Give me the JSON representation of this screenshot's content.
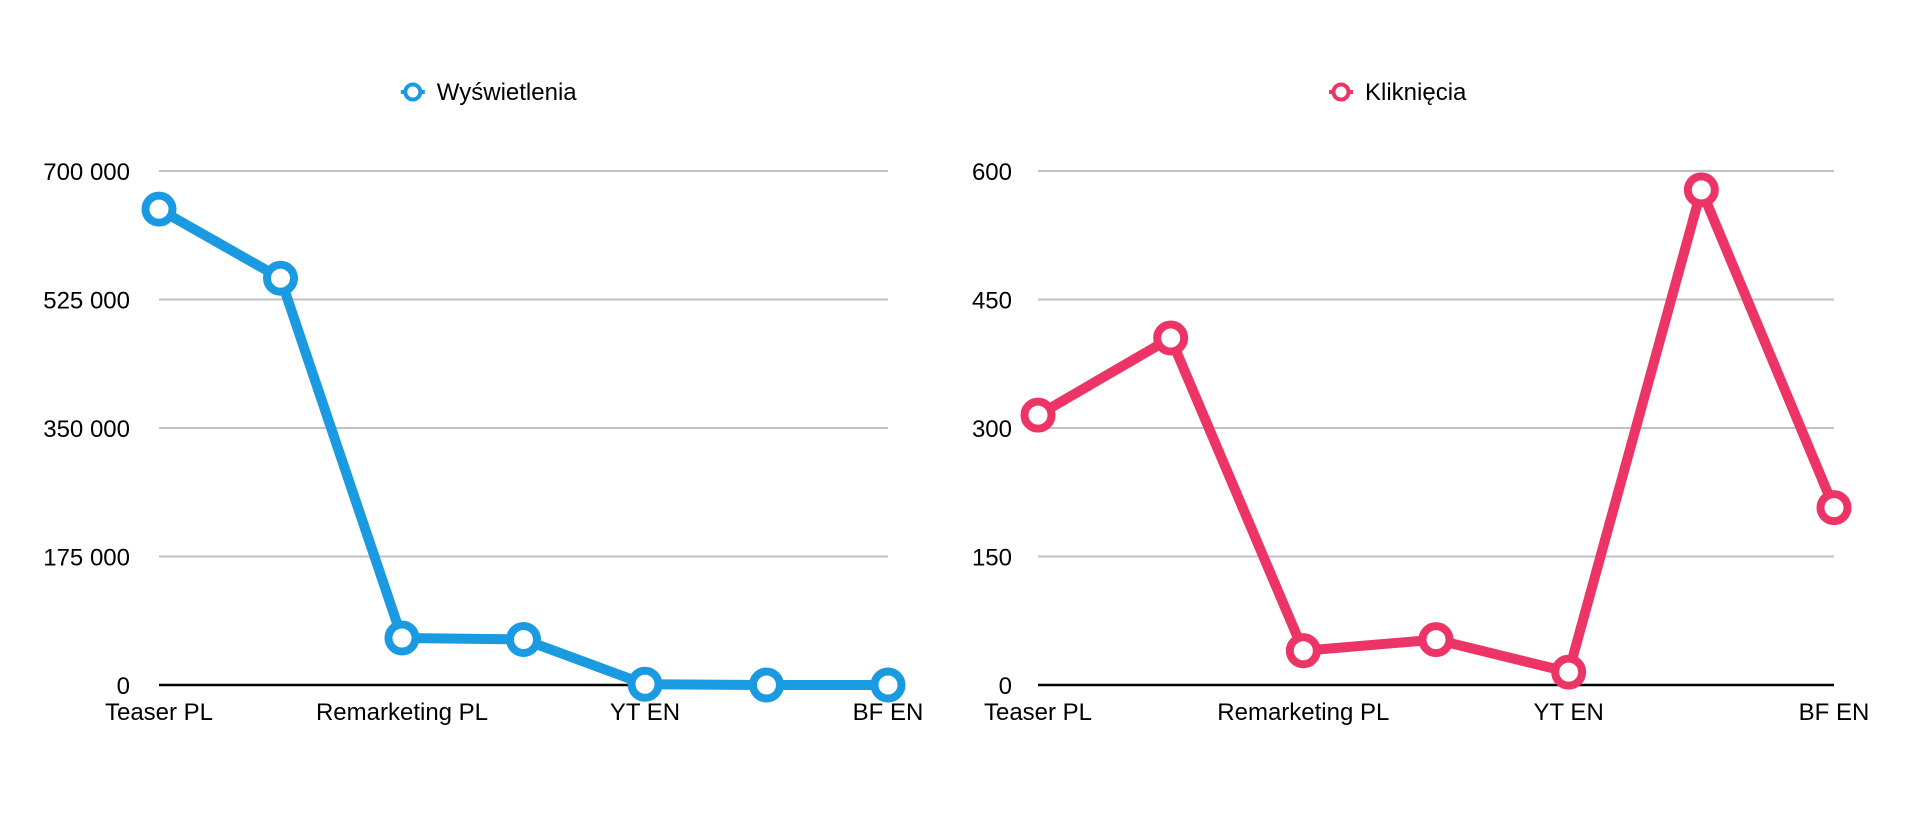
{
  "chart_data": [
    {
      "type": "line",
      "title": "",
      "xlabel": "",
      "ylabel": "",
      "legend": "Wyświetlenia",
      "legend_position": "top-center",
      "color": "#1a9ae0",
      "x_points": 7,
      "categories": [
        "Teaser PL",
        "",
        "Remarketing PL",
        "",
        "YT EN",
        "",
        "BF EN"
      ],
      "values": [
        648000,
        554000,
        64000,
        62000,
        1000,
        0,
        0
      ],
      "ylim": [
        0,
        700000
      ],
      "yticks": [
        0,
        175000,
        350000,
        525000,
        700000
      ],
      "ytick_labels": [
        "0",
        "175 000",
        "350 000",
        "525 000",
        "700 000"
      ],
      "grid": true
    },
    {
      "type": "line",
      "title": "",
      "xlabel": "",
      "ylabel": "",
      "legend": "Kliknięcia",
      "legend_position": "top-center",
      "color": "#ec3566",
      "x_points": 7,
      "categories": [
        "Teaser PL",
        "",
        "Remarketing PL",
        "",
        "YT EN",
        "",
        "BF EN"
      ],
      "values": [
        315,
        405,
        40,
        53,
        15,
        578,
        207
      ],
      "ylim": [
        0,
        600
      ],
      "yticks": [
        0,
        150,
        300,
        450,
        600
      ],
      "ytick_labels": [
        "0",
        "150",
        "300",
        "450",
        "600"
      ],
      "grid": true
    }
  ]
}
